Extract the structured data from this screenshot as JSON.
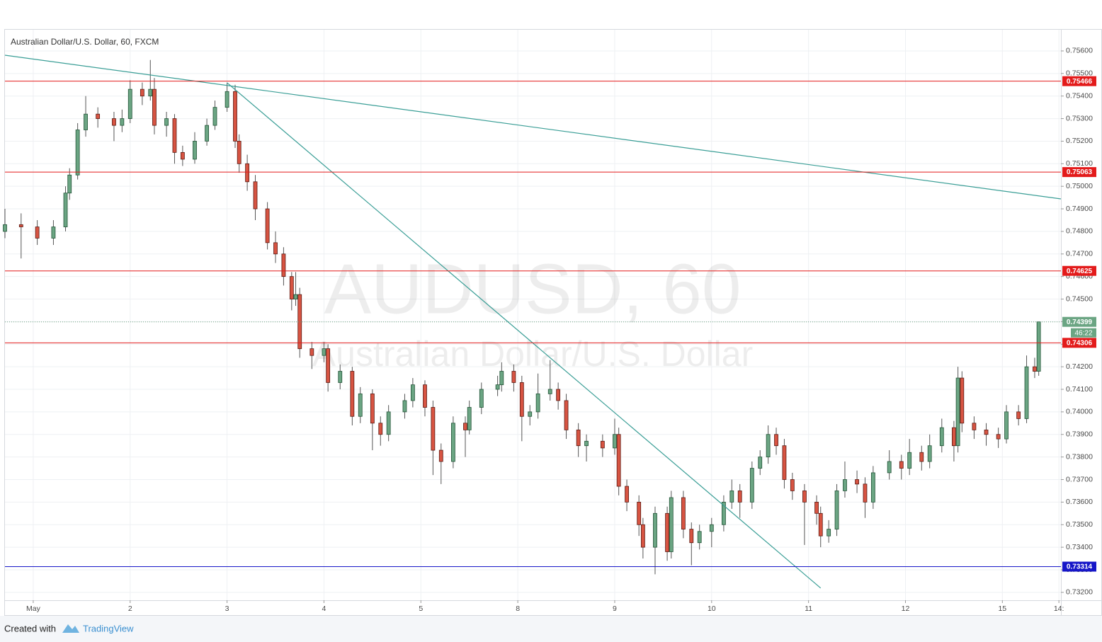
{
  "chart_data": {
    "type": "candlestick",
    "title": "Australian Dollar/U.S. Dollar, 60, FXCM",
    "watermark": "AUDUSD, 60",
    "watermark_subtitle": "Australian Dollar/U.S. Dollar",
    "footer": {
      "created": "Created with",
      "brand": "TradingView"
    },
    "up_color": "#6ba583",
    "down_color": "#d75442",
    "xlim": [
      -7,
      254.5
    ],
    "xticks": [
      {
        "value": 0,
        "label": "May"
      },
      {
        "value": 24,
        "label": "2"
      },
      {
        "value": 48,
        "label": "3"
      },
      {
        "value": 72,
        "label": "4"
      },
      {
        "value": 96,
        "label": "5"
      },
      {
        "value": 120,
        "label": "8"
      },
      {
        "value": 144,
        "label": "9"
      },
      {
        "value": 168,
        "label": "10"
      },
      {
        "value": 192,
        "label": "11"
      },
      {
        "value": 216,
        "label": "12"
      },
      {
        "value": 240,
        "label": "15"
      },
      {
        "value": 254,
        "label": "14:"
      }
    ],
    "ylim": [
      0.73165,
      0.75694
    ],
    "yticks": [
      {
        "value": 0.732,
        "label": "0.73200"
      },
      {
        "value": 0.733,
        "label": "0.73300"
      },
      {
        "value": 0.734,
        "label": "0.73400"
      },
      {
        "value": 0.735,
        "label": "0.73500"
      },
      {
        "value": 0.736,
        "label": "0.73600"
      },
      {
        "value": 0.737,
        "label": "0.73700"
      },
      {
        "value": 0.738,
        "label": "0.73800"
      },
      {
        "value": 0.739,
        "label": "0.73900"
      },
      {
        "value": 0.74,
        "label": "0.74000"
      },
      {
        "value": 0.741,
        "label": "0.74100"
      },
      {
        "value": 0.742,
        "label": "0.74200"
      },
      {
        "value": 0.743,
        "label": "0.74300"
      },
      {
        "value": 0.744,
        "label": "0.74400"
      },
      {
        "value": 0.745,
        "label": "0.74500"
      },
      {
        "value": 0.746,
        "label": "0.74600"
      },
      {
        "value": 0.747,
        "label": "0.74700"
      },
      {
        "value": 0.748,
        "label": "0.74800"
      },
      {
        "value": 0.749,
        "label": "0.74900"
      },
      {
        "value": 0.75,
        "label": "0.75000"
      },
      {
        "value": 0.751,
        "label": "0.75100"
      },
      {
        "value": 0.752,
        "label": "0.75200"
      },
      {
        "value": 0.753,
        "label": "0.75300"
      },
      {
        "value": 0.754,
        "label": "0.75400"
      },
      {
        "value": 0.755,
        "label": "0.75500"
      },
      {
        "value": 0.756,
        "label": "0.75600"
      }
    ],
    "grid": true,
    "levels": [
      {
        "value": 0.75466,
        "color": "#e31b1b"
      },
      {
        "value": 0.75063,
        "color": "#e31b1b"
      },
      {
        "value": 0.74625,
        "color": "#e31b1b"
      },
      {
        "value": 0.74306,
        "color": "#e31b1b"
      },
      {
        "value": 0.73314,
        "color": "#1616c8"
      }
    ],
    "last_price": 0.74399,
    "last_color": "#6ba583",
    "countdown": "46:22",
    "trendlines": [
      {
        "x": [
          -7,
          254.5
        ],
        "y": [
          0.75581,
          0.74944
        ],
        "color": "#3a9e96"
      },
      {
        "x": [
          48,
          195
        ],
        "y": [
          0.75459,
          0.73219
        ],
        "color": "#3a9e96"
      }
    ],
    "x": [
      -7,
      -3,
      1,
      5,
      8,
      9,
      11,
      13,
      16,
      20,
      22,
      24,
      27,
      29,
      30,
      33,
      35,
      37,
      40,
      43,
      45,
      48,
      50,
      51,
      53,
      55,
      58,
      60,
      62,
      64,
      65,
      66,
      69,
      72,
      73,
      76,
      79,
      81,
      84,
      86,
      88,
      92,
      94,
      97,
      99,
      101,
      104,
      107,
      108,
      111,
      115,
      116,
      119,
      121,
      123,
      125,
      128,
      130,
      132,
      135,
      137,
      141,
      144,
      145,
      147,
      150,
      151,
      154,
      157,
      158,
      161,
      163,
      165,
      168,
      171,
      173,
      175,
      178,
      180,
      182,
      184,
      186,
      188,
      191,
      194,
      195,
      197,
      199,
      201,
      204,
      206,
      208,
      212,
      215,
      217,
      220,
      222,
      225,
      228,
      229,
      230,
      233,
      236,
      239,
      241,
      244,
      246,
      248,
      249
    ],
    "candles": [
      [
        0.748,
        0.749,
        0.7477,
        0.7483
      ],
      [
        0.7483,
        0.7488,
        0.7468,
        0.7482
      ],
      [
        0.7482,
        0.7485,
        0.7474,
        0.7477
      ],
      [
        0.7477,
        0.7485,
        0.7474,
        0.7482
      ],
      [
        0.7482,
        0.75,
        0.748,
        0.7497
      ],
      [
        0.7497,
        0.7508,
        0.7494,
        0.7505
      ],
      [
        0.7505,
        0.7528,
        0.7503,
        0.7525
      ],
      [
        0.7525,
        0.754,
        0.7522,
        0.7532
      ],
      [
        0.7532,
        0.7535,
        0.7526,
        0.753
      ],
      [
        0.753,
        0.7533,
        0.752,
        0.7527
      ],
      [
        0.7527,
        0.7534,
        0.7524,
        0.753
      ],
      [
        0.753,
        0.7547,
        0.7528,
        0.7543
      ],
      [
        0.7543,
        0.7546,
        0.7536,
        0.754
      ],
      [
        0.754,
        0.7556,
        0.7538,
        0.7543
      ],
      [
        0.7543,
        0.7548,
        0.7523,
        0.7527
      ],
      [
        0.7527,
        0.7533,
        0.7522,
        0.753
      ],
      [
        0.753,
        0.7532,
        0.751,
        0.7515
      ],
      [
        0.7515,
        0.7518,
        0.7509,
        0.7512
      ],
      [
        0.7512,
        0.7524,
        0.751,
        0.752
      ],
      [
        0.752,
        0.753,
        0.7518,
        0.7527
      ],
      [
        0.7527,
        0.7538,
        0.7525,
        0.7535
      ],
      [
        0.7535,
        0.7546,
        0.7533,
        0.7542
      ],
      [
        0.7542,
        0.7545,
        0.7517,
        0.752
      ],
      [
        0.752,
        0.7523,
        0.7506,
        0.751
      ],
      [
        0.751,
        0.7514,
        0.7498,
        0.7502
      ],
      [
        0.7502,
        0.7505,
        0.7485,
        0.749
      ],
      [
        0.749,
        0.7493,
        0.7472,
        0.7475
      ],
      [
        0.7475,
        0.748,
        0.7466,
        0.747
      ],
      [
        0.747,
        0.7473,
        0.7456,
        0.746
      ],
      [
        0.746,
        0.7462,
        0.7445,
        0.745
      ],
      [
        0.745,
        0.7462,
        0.7447,
        0.7452
      ],
      [
        0.7452,
        0.7455,
        0.7424,
        0.7428
      ],
      [
        0.7428,
        0.7431,
        0.7419,
        0.7425
      ],
      [
        0.7425,
        0.7431,
        0.7422,
        0.7428
      ],
      [
        0.7428,
        0.743,
        0.7409,
        0.7413
      ],
      [
        0.7413,
        0.7421,
        0.741,
        0.7418
      ],
      [
        0.7418,
        0.742,
        0.7394,
        0.7398
      ],
      [
        0.7398,
        0.7411,
        0.7395,
        0.7408
      ],
      [
        0.7408,
        0.741,
        0.7383,
        0.7395
      ],
      [
        0.7395,
        0.7398,
        0.7385,
        0.739
      ],
      [
        0.739,
        0.7403,
        0.7387,
        0.74
      ],
      [
        0.74,
        0.7408,
        0.7397,
        0.7405
      ],
      [
        0.7405,
        0.7415,
        0.7402,
        0.7412
      ],
      [
        0.7412,
        0.7414,
        0.7398,
        0.7402
      ],
      [
        0.7402,
        0.7405,
        0.7372,
        0.7383
      ],
      [
        0.7383,
        0.7386,
        0.7368,
        0.7378
      ],
      [
        0.7378,
        0.7398,
        0.7375,
        0.7395
      ],
      [
        0.7395,
        0.7398,
        0.738,
        0.7392
      ],
      [
        0.7392,
        0.7405,
        0.739,
        0.7402
      ],
      [
        0.7402,
        0.7413,
        0.7399,
        0.741
      ],
      [
        0.741,
        0.7416,
        0.7407,
        0.7412
      ],
      [
        0.7412,
        0.7422,
        0.7409,
        0.7418
      ],
      [
        0.7418,
        0.7421,
        0.7409,
        0.7413
      ],
      [
        0.7413,
        0.7416,
        0.7387,
        0.7398
      ],
      [
        0.7398,
        0.7403,
        0.7394,
        0.74
      ],
      [
        0.74,
        0.7417,
        0.7397,
        0.7408
      ],
      [
        0.7408,
        0.7423,
        0.7405,
        0.741
      ],
      [
        0.741,
        0.7413,
        0.7401,
        0.7405
      ],
      [
        0.7405,
        0.7408,
        0.7388,
        0.7392
      ],
      [
        0.7392,
        0.7395,
        0.738,
        0.7385
      ],
      [
        0.7385,
        0.739,
        0.7378,
        0.7387
      ],
      [
        0.7387,
        0.739,
        0.738,
        0.7384
      ],
      [
        0.7384,
        0.7397,
        0.7381,
        0.739
      ],
      [
        0.739,
        0.7393,
        0.7363,
        0.7367
      ],
      [
        0.7367,
        0.737,
        0.7356,
        0.736
      ],
      [
        0.736,
        0.7363,
        0.7345,
        0.735
      ],
      [
        0.735,
        0.7353,
        0.7335,
        0.734
      ],
      [
        0.734,
        0.7358,
        0.7328,
        0.7355
      ],
      [
        0.7355,
        0.7358,
        0.7334,
        0.7338
      ],
      [
        0.7338,
        0.7365,
        0.7335,
        0.7362
      ],
      [
        0.7362,
        0.7365,
        0.7344,
        0.7348
      ],
      [
        0.7348,
        0.7351,
        0.7332,
        0.7342
      ],
      [
        0.7342,
        0.735,
        0.7339,
        0.7347
      ],
      [
        0.7347,
        0.7353,
        0.734,
        0.735
      ],
      [
        0.735,
        0.7363,
        0.7347,
        0.736
      ],
      [
        0.736,
        0.737,
        0.7357,
        0.7365
      ],
      [
        0.7365,
        0.7368,
        0.7353,
        0.736
      ],
      [
        0.736,
        0.7378,
        0.7357,
        0.7375
      ],
      [
        0.7375,
        0.7383,
        0.7372,
        0.738
      ],
      [
        0.738,
        0.7394,
        0.7377,
        0.739
      ],
      [
        0.739,
        0.7393,
        0.7381,
        0.7385
      ],
      [
        0.7385,
        0.7388,
        0.7366,
        0.737
      ],
      [
        0.737,
        0.7373,
        0.7361,
        0.7365
      ],
      [
        0.7365,
        0.7368,
        0.7341,
        0.736
      ],
      [
        0.736,
        0.7363,
        0.735,
        0.7355
      ],
      [
        0.7355,
        0.7358,
        0.734,
        0.7345
      ],
      [
        0.7345,
        0.7352,
        0.7342,
        0.7348
      ],
      [
        0.7348,
        0.7368,
        0.7345,
        0.7365
      ],
      [
        0.7365,
        0.7378,
        0.7362,
        0.737
      ],
      [
        0.737,
        0.7374,
        0.7364,
        0.7368
      ],
      [
        0.7368,
        0.7371,
        0.7353,
        0.736
      ],
      [
        0.736,
        0.7376,
        0.7357,
        0.7373
      ],
      [
        0.7373,
        0.7383,
        0.737,
        0.7378
      ],
      [
        0.7378,
        0.7381,
        0.737,
        0.7375
      ],
      [
        0.7375,
        0.7388,
        0.7372,
        0.7382
      ],
      [
        0.7382,
        0.7385,
        0.7374,
        0.7378
      ],
      [
        0.7378,
        0.739,
        0.7375,
        0.7385
      ],
      [
        0.7385,
        0.7397,
        0.7382,
        0.7393
      ],
      [
        0.7393,
        0.7396,
        0.7378,
        0.7385
      ],
      [
        0.7385,
        0.742,
        0.7382,
        0.7415
      ],
      [
        0.7415,
        0.7418,
        0.7391,
        0.7395
      ],
      [
        0.7395,
        0.7398,
        0.7388,
        0.7392
      ],
      [
        0.7392,
        0.7395,
        0.7385,
        0.739
      ],
      [
        0.739,
        0.7393,
        0.7384,
        0.7388
      ],
      [
        0.7388,
        0.7403,
        0.7386,
        0.74
      ],
      [
        0.74,
        0.7403,
        0.7394,
        0.7397
      ],
      [
        0.7397,
        0.7425,
        0.7395,
        0.742
      ],
      [
        0.742,
        0.7424,
        0.7415,
        0.7418
      ],
      [
        0.7418,
        0.74399,
        0.7416,
        0.74399
      ]
    ]
  }
}
